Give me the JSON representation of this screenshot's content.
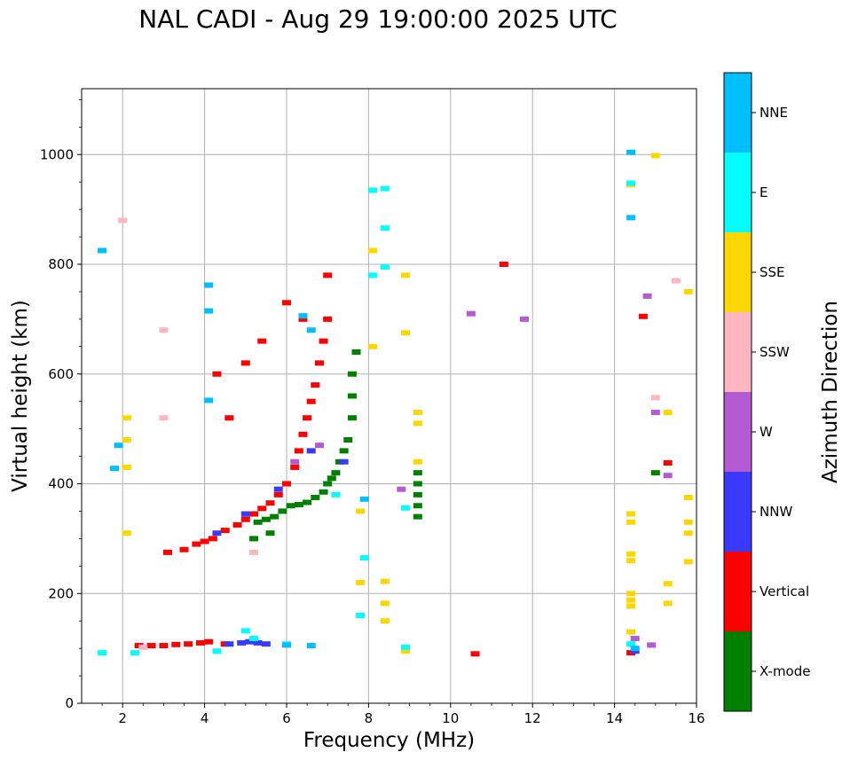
{
  "chart_data": {
    "type": "scatter",
    "title": "NAL CADI - Aug 29 19:00:00 2025 UTC",
    "xlabel": "Frequency (MHz)",
    "ylabel": "Virtual height (km)",
    "xlim": [
      1,
      16
    ],
    "ylim": [
      0,
      1120
    ],
    "x_ticks": [
      2,
      4,
      6,
      8,
      10,
      12,
      14,
      16
    ],
    "y_ticks": [
      0,
      200,
      400,
      600,
      800,
      1000
    ],
    "grid": true,
    "colorbar": {
      "label": "Azimuth Direction",
      "categories": [
        {
          "name": "X-mode",
          "color": "#008000"
        },
        {
          "name": "Vertical",
          "color": "#ff0000"
        },
        {
          "name": "NNW",
          "color": "#3a3aff"
        },
        {
          "name": "W",
          "color": "#b45ad2"
        },
        {
          "name": "SSW",
          "color": "#ffb6c1"
        },
        {
          "name": "SSE",
          "color": "#ffd700"
        },
        {
          "name": "E",
          "color": "#00ffff"
        },
        {
          "name": "NNE",
          "color": "#00bfff"
        }
      ]
    },
    "series": [
      {
        "name": "X-mode",
        "points": [
          [
            5.3,
            330
          ],
          [
            5.5,
            335
          ],
          [
            5.7,
            340
          ],
          [
            5.9,
            350
          ],
          [
            6.1,
            360
          ],
          [
            6.3,
            362
          ],
          [
            6.5,
            366
          ],
          [
            6.7,
            375
          ],
          [
            6.9,
            385
          ],
          [
            7.0,
            400
          ],
          [
            7.1,
            410
          ],
          [
            7.2,
            420
          ],
          [
            7.3,
            440
          ],
          [
            7.4,
            460
          ],
          [
            7.5,
            480
          ],
          [
            7.6,
            520
          ],
          [
            7.6,
            560
          ],
          [
            7.6,
            600
          ],
          [
            7.7,
            640
          ],
          [
            9.2,
            340
          ],
          [
            9.2,
            360
          ],
          [
            9.2,
            380
          ],
          [
            9.2,
            400
          ],
          [
            9.2,
            420
          ],
          [
            5.2,
            300
          ],
          [
            5.6,
            310
          ],
          [
            15.0,
            420
          ]
        ]
      },
      {
        "name": "Vertical",
        "points": [
          [
            3.1,
            275
          ],
          [
            3.5,
            280
          ],
          [
            3.8,
            290
          ],
          [
            4.2,
            300
          ],
          [
            4.5,
            315
          ],
          [
            4.8,
            325
          ],
          [
            5.0,
            335
          ],
          [
            5.2,
            345
          ],
          [
            5.4,
            355
          ],
          [
            5.6,
            365
          ],
          [
            5.8,
            380
          ],
          [
            6.0,
            400
          ],
          [
            6.2,
            430
          ],
          [
            6.3,
            460
          ],
          [
            6.4,
            490
          ],
          [
            6.5,
            520
          ],
          [
            6.6,
            550
          ],
          [
            6.7,
            580
          ],
          [
            6.8,
            620
          ],
          [
            6.9,
            660
          ],
          [
            7.0,
            700
          ],
          [
            6.4,
            700
          ],
          [
            6.0,
            730
          ],
          [
            5.4,
            660
          ],
          [
            5.0,
            620
          ],
          [
            4.6,
            520
          ],
          [
            4.3,
            600
          ],
          [
            2.4,
            105
          ],
          [
            2.7,
            105
          ],
          [
            3.0,
            105
          ],
          [
            3.3,
            107
          ],
          [
            3.6,
            108
          ],
          [
            3.9,
            110
          ],
          [
            4.1,
            112
          ],
          [
            4.5,
            108
          ],
          [
            7.0,
            780
          ],
          [
            11.3,
            800
          ],
          [
            10.6,
            90
          ],
          [
            14.4,
            92
          ],
          [
            14.7,
            705
          ],
          [
            15.3,
            438
          ],
          [
            4.0,
            295
          ]
        ]
      },
      {
        "name": "NNW",
        "points": [
          [
            4.6,
            108
          ],
          [
            4.9,
            110
          ],
          [
            5.1,
            112
          ],
          [
            5.3,
            110
          ],
          [
            5.5,
            108
          ],
          [
            4.3,
            310
          ],
          [
            5.0,
            345
          ],
          [
            5.8,
            390
          ],
          [
            6.6,
            460
          ],
          [
            7.4,
            440
          ],
          [
            14.5,
            95
          ]
        ]
      },
      {
        "name": "W",
        "points": [
          [
            6.2,
            440
          ],
          [
            6.8,
            470
          ],
          [
            8.8,
            390
          ],
          [
            10.5,
            710
          ],
          [
            11.8,
            700
          ],
          [
            14.5,
            118
          ],
          [
            14.8,
            742
          ],
          [
            14.9,
            106
          ],
          [
            15.0,
            530
          ],
          [
            15.3,
            415
          ]
        ]
      },
      {
        "name": "SSW",
        "points": [
          [
            2.0,
            880
          ],
          [
            2.5,
            102
          ],
          [
            3.0,
            680
          ],
          [
            3.0,
            520
          ],
          [
            5.2,
            275
          ],
          [
            15.5,
            770
          ],
          [
            15.0,
            557
          ]
        ]
      },
      {
        "name": "SSE",
        "points": [
          [
            2.1,
            520
          ],
          [
            2.1,
            480
          ],
          [
            2.1,
            430
          ],
          [
            2.1,
            310
          ],
          [
            7.8,
            350
          ],
          [
            7.8,
            220
          ],
          [
            8.1,
            825
          ],
          [
            8.1,
            650
          ],
          [
            8.4,
            222
          ],
          [
            8.4,
            182
          ],
          [
            8.4,
            150
          ],
          [
            8.9,
            95
          ],
          [
            8.9,
            780
          ],
          [
            8.9,
            675
          ],
          [
            9.2,
            530
          ],
          [
            9.2,
            510
          ],
          [
            9.2,
            440
          ],
          [
            14.4,
            345
          ],
          [
            14.4,
            330
          ],
          [
            14.4,
            272
          ],
          [
            14.4,
            260
          ],
          [
            14.4,
            200
          ],
          [
            14.4,
            188
          ],
          [
            14.4,
            177
          ],
          [
            14.4,
            130
          ],
          [
            14.4,
            945
          ],
          [
            15.0,
            998
          ],
          [
            15.3,
            530
          ],
          [
            15.3,
            218
          ],
          [
            15.3,
            182
          ],
          [
            15.8,
            750
          ],
          [
            15.8,
            375
          ],
          [
            15.8,
            330
          ],
          [
            15.8,
            310
          ],
          [
            15.8,
            258
          ]
        ]
      },
      {
        "name": "E",
        "points": [
          [
            1.5,
            92
          ],
          [
            2.3,
            92
          ],
          [
            4.3,
            95
          ],
          [
            5.2,
            118
          ],
          [
            6.0,
            108
          ],
          [
            7.8,
            160
          ],
          [
            7.9,
            265
          ],
          [
            8.1,
            780
          ],
          [
            8.1,
            935
          ],
          [
            8.4,
            795
          ],
          [
            8.4,
            938
          ],
          [
            8.4,
            866
          ],
          [
            8.9,
            356
          ],
          [
            8.9,
            102
          ],
          [
            14.4,
            948
          ],
          [
            14.4,
            108
          ],
          [
            5.0,
            132
          ],
          [
            7.2,
            380
          ]
        ]
      },
      {
        "name": "NNE",
        "points": [
          [
            1.5,
            825
          ],
          [
            1.9,
            470
          ],
          [
            1.8,
            428
          ],
          [
            4.1,
            762
          ],
          [
            4.1,
            715
          ],
          [
            4.1,
            552
          ],
          [
            6.0,
            106
          ],
          [
            6.6,
            105
          ],
          [
            6.4,
            706
          ],
          [
            6.6,
            680
          ],
          [
            7.9,
            372
          ],
          [
            14.4,
            1004
          ],
          [
            14.4,
            885
          ],
          [
            14.5,
            100
          ]
        ]
      }
    ]
  }
}
